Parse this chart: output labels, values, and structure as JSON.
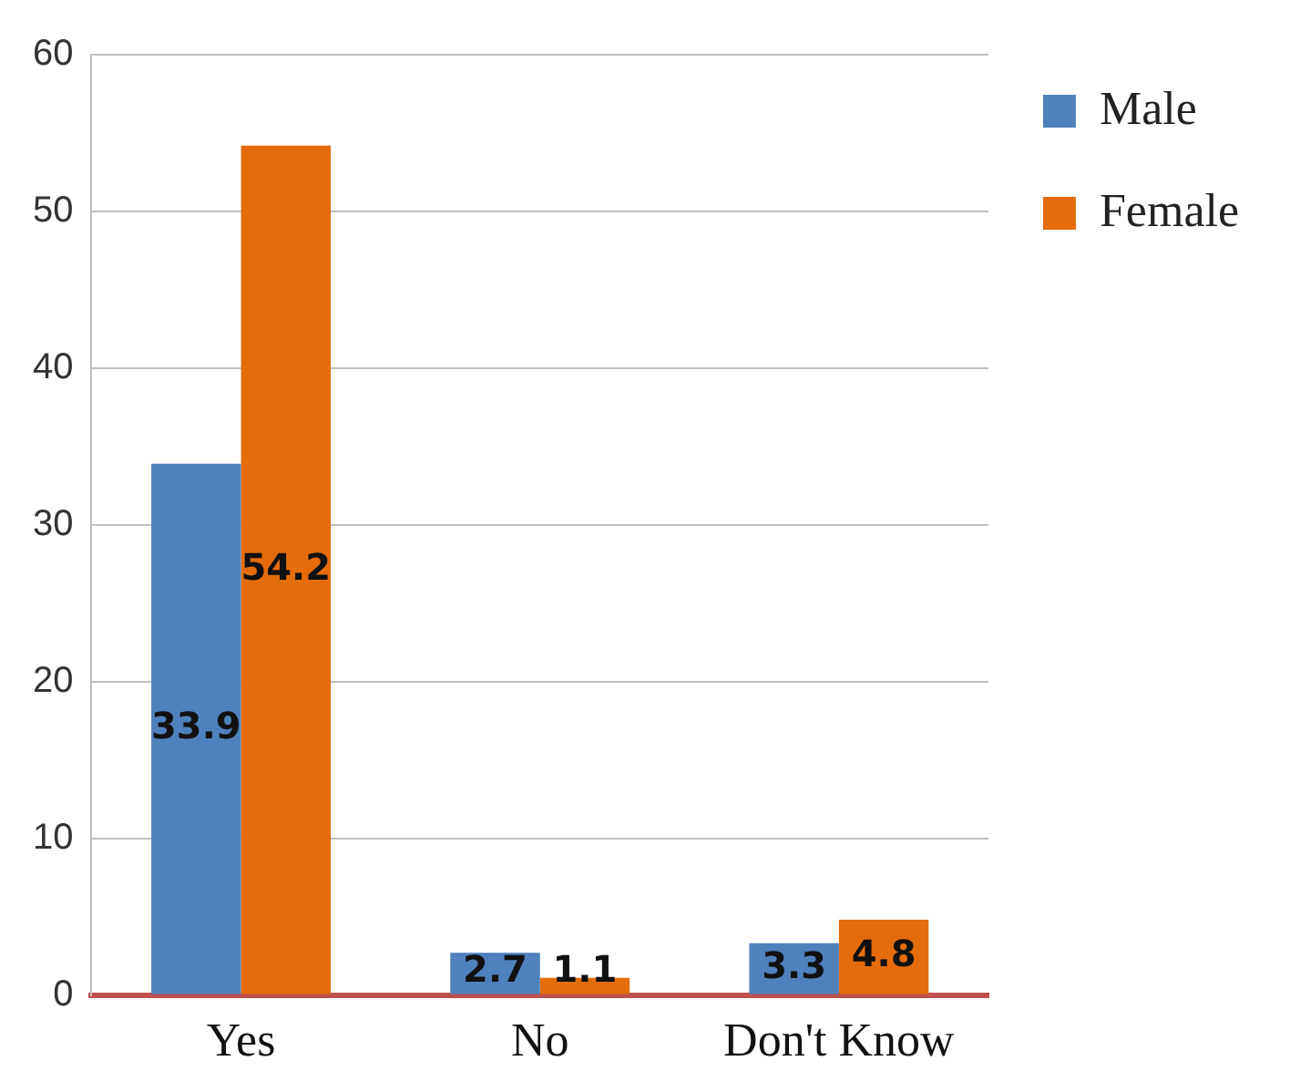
{
  "chart_data": {
    "type": "bar",
    "categories": [
      "Yes",
      "No",
      "Don't Know"
    ],
    "series": [
      {
        "name": "Male",
        "color": "#4f81bd",
        "values": [
          33.9,
          2.7,
          3.3
        ]
      },
      {
        "name": "Female",
        "color": "#e46c0a",
        "values": [
          54.2,
          1.1,
          4.8
        ]
      }
    ],
    "ylim": [
      0,
      60
    ],
    "yticks": [
      0,
      10,
      20,
      30,
      40,
      50,
      60
    ],
    "grid": "y",
    "legend": "right",
    "data_labels": true
  }
}
